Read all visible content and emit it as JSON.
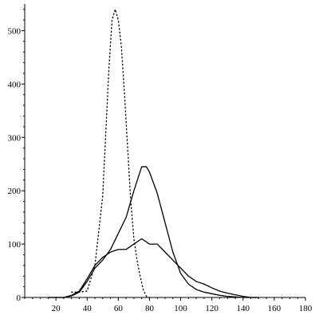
{
  "chart_data": {
    "type": "line",
    "title": "",
    "xlabel": "",
    "ylabel": "",
    "xlim": [
      0,
      180
    ],
    "ylim": [
      0,
      550
    ],
    "x_ticks": [
      20,
      40,
      60,
      80,
      100,
      120,
      140,
      160,
      180
    ],
    "y_ticks": [
      0,
      100,
      200,
      300,
      400,
      500
    ],
    "grid": false,
    "legend": "none",
    "series": [
      {
        "style": "dotted",
        "color": "#000000",
        "x": [
          30,
          35,
          40,
          45,
          50,
          52,
          54,
          56,
          58,
          60,
          62,
          64,
          66,
          68,
          70,
          72,
          74,
          76,
          78,
          80
        ],
        "y": [
          10,
          10,
          12,
          60,
          190,
          310,
          430,
          520,
          540,
          520,
          470,
          380,
          280,
          180,
          110,
          70,
          40,
          15,
          2,
          0
        ]
      },
      {
        "style": "solid",
        "color": "#000000",
        "x": [
          15,
          25,
          30,
          35,
          40,
          45,
          50,
          55,
          60,
          65,
          70,
          75,
          78,
          80,
          85,
          90,
          95,
          100,
          105,
          110,
          115,
          120,
          125,
          130,
          135,
          140,
          145,
          150
        ],
        "y": [
          0,
          0,
          3,
          10,
          30,
          55,
          70,
          90,
          120,
          150,
          200,
          245,
          245,
          235,
          195,
          140,
          85,
          45,
          25,
          15,
          10,
          7,
          4,
          2,
          1,
          0,
          0,
          0
        ]
      },
      {
        "style": "solid",
        "color": "#000000",
        "x": [
          15,
          25,
          30,
          35,
          40,
          45,
          50,
          55,
          60,
          65,
          70,
          75,
          80,
          85,
          90,
          95,
          100,
          105,
          110,
          115,
          120,
          125,
          130,
          135,
          140,
          145,
          150
        ],
        "y": [
          0,
          0,
          4,
          12,
          35,
          60,
          75,
          85,
          90,
          90,
          100,
          110,
          100,
          100,
          85,
          70,
          55,
          40,
          30,
          25,
          18,
          12,
          8,
          5,
          2,
          0,
          0
        ]
      }
    ]
  }
}
